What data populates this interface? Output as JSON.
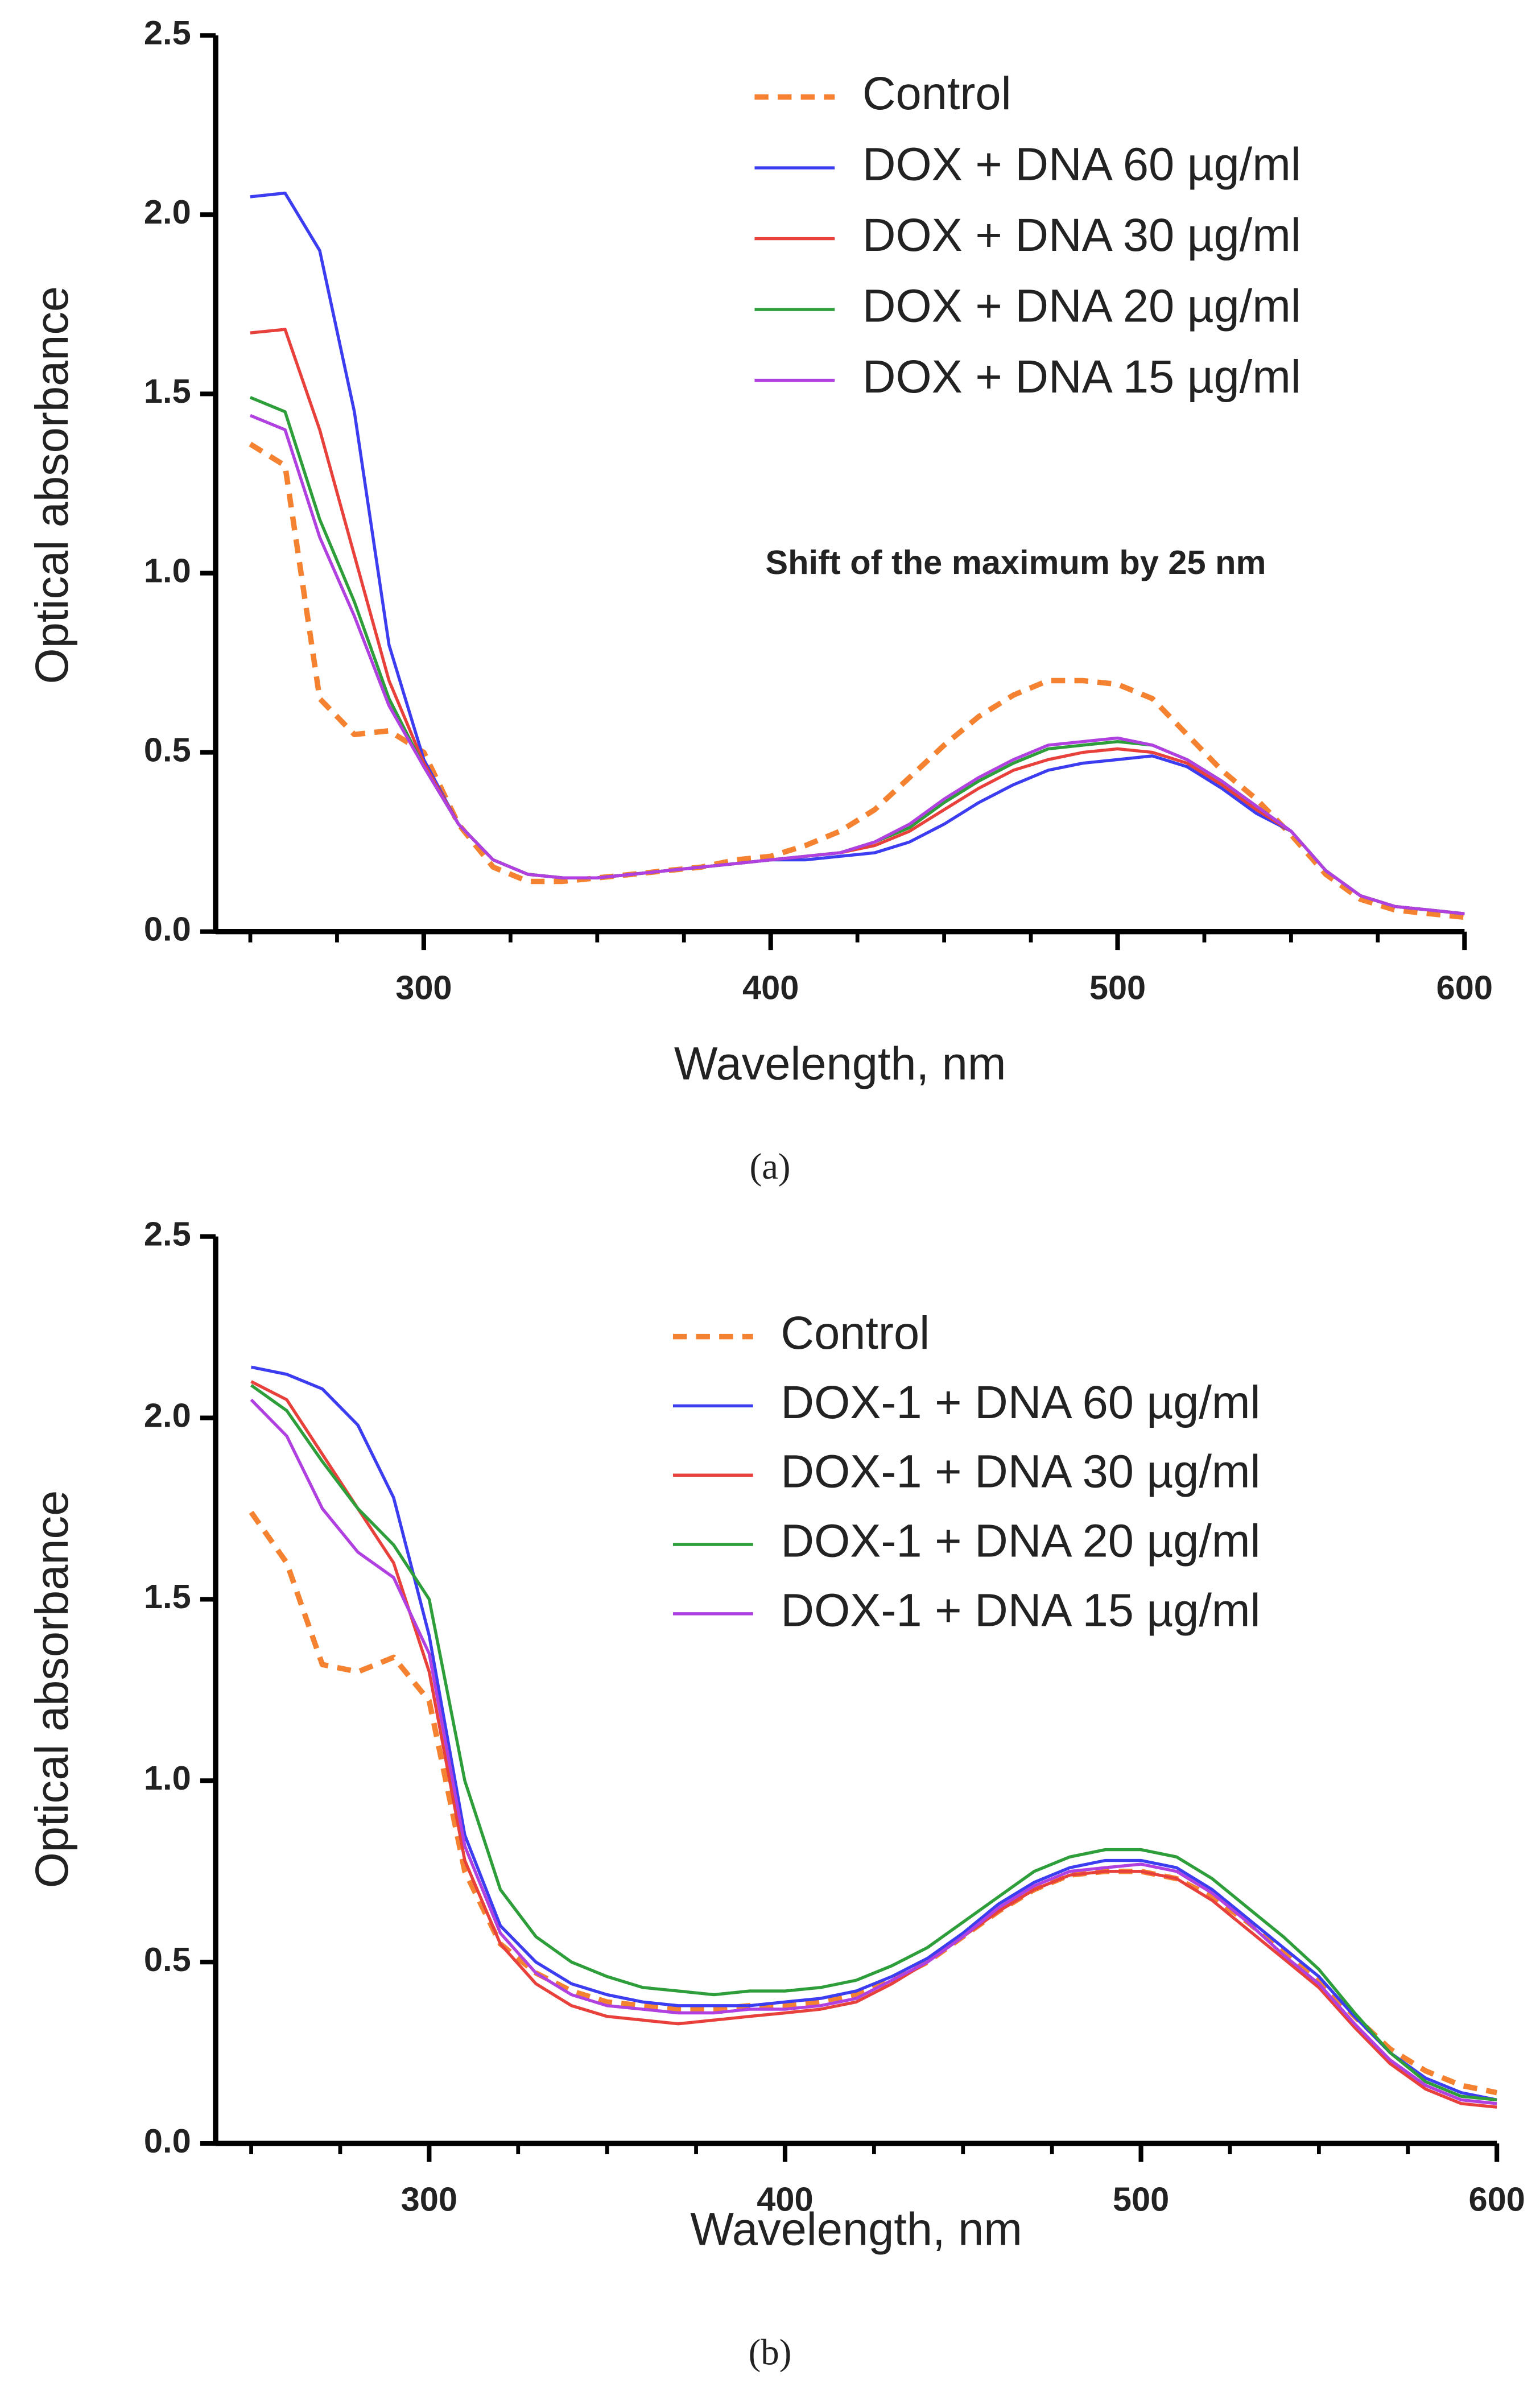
{
  "chart_data": [
    {
      "type": "line",
      "caption": "(a)",
      "xlabel": "Wavelength, nm",
      "ylabel": "Optical absorbance",
      "annotation": "Shift of the maximum by 25 nm",
      "xlim": [
        240,
        600
      ],
      "ylim": [
        0,
        2.5
      ],
      "xticks": [
        300,
        400,
        500,
        600
      ],
      "xticks_minor": [
        250,
        275,
        325,
        350,
        375,
        425,
        450,
        475,
        525,
        550,
        575
      ],
      "yticks": [
        {
          "value": 0,
          "label": "0.0"
        },
        0.5,
        {
          "value": 1,
          "label": "1.0"
        },
        1.5,
        {
          "value": 2,
          "label": "2.0"
        },
        2.5
      ],
      "x": [
        250,
        260,
        270,
        280,
        290,
        300,
        310,
        320,
        330,
        340,
        350,
        360,
        370,
        380,
        390,
        400,
        410,
        420,
        430,
        440,
        450,
        460,
        470,
        480,
        490,
        500,
        510,
        520,
        530,
        540,
        550,
        560,
        570,
        580,
        590,
        600
      ],
      "series": [
        {
          "name": "Control",
          "color": "#f58231",
          "dashed": true,
          "values": [
            1.36,
            1.3,
            0.65,
            0.55,
            0.56,
            0.5,
            0.3,
            0.18,
            0.14,
            0.14,
            0.15,
            0.16,
            0.17,
            0.18,
            0.2,
            0.21,
            0.24,
            0.28,
            0.34,
            0.43,
            0.52,
            0.6,
            0.66,
            0.7,
            0.7,
            0.69,
            0.65,
            0.55,
            0.45,
            0.37,
            0.27,
            0.16,
            0.09,
            0.06,
            0.05,
            0.04
          ]
        },
        {
          "name": "DOX + DNA 60 µg/ml",
          "color": "#3c3cf0",
          "values": [
            2.05,
            2.06,
            1.9,
            1.45,
            0.8,
            0.48,
            0.3,
            0.2,
            0.16,
            0.15,
            0.15,
            0.16,
            0.17,
            0.18,
            0.19,
            0.2,
            0.2,
            0.21,
            0.22,
            0.25,
            0.3,
            0.36,
            0.41,
            0.45,
            0.47,
            0.48,
            0.49,
            0.46,
            0.4,
            0.33,
            0.28,
            0.17,
            0.1,
            0.07,
            0.06,
            0.05
          ]
        },
        {
          "name": "DOX + DNA 30 µg/ml",
          "color": "#e8413c",
          "values": [
            1.67,
            1.68,
            1.4,
            1.05,
            0.7,
            0.47,
            0.3,
            0.2,
            0.16,
            0.15,
            0.15,
            0.16,
            0.17,
            0.18,
            0.19,
            0.2,
            0.21,
            0.22,
            0.24,
            0.28,
            0.34,
            0.4,
            0.45,
            0.48,
            0.5,
            0.51,
            0.5,
            0.47,
            0.41,
            0.34,
            0.28,
            0.17,
            0.1,
            0.07,
            0.06,
            0.05
          ]
        },
        {
          "name": "DOX + DNA 20 µg/ml",
          "color": "#2e9e3a",
          "values": [
            1.49,
            1.45,
            1.15,
            0.92,
            0.65,
            0.46,
            0.3,
            0.2,
            0.16,
            0.15,
            0.15,
            0.16,
            0.17,
            0.18,
            0.19,
            0.2,
            0.21,
            0.22,
            0.25,
            0.29,
            0.36,
            0.42,
            0.47,
            0.51,
            0.52,
            0.53,
            0.52,
            0.48,
            0.42,
            0.35,
            0.28,
            0.17,
            0.1,
            0.07,
            0.06,
            0.05
          ]
        },
        {
          "name": "DOX + DNA 15 µg/ml",
          "color": "#b040e0",
          "values": [
            1.44,
            1.4,
            1.1,
            0.88,
            0.63,
            0.46,
            0.3,
            0.2,
            0.16,
            0.15,
            0.15,
            0.16,
            0.17,
            0.18,
            0.19,
            0.2,
            0.21,
            0.22,
            0.25,
            0.3,
            0.37,
            0.43,
            0.48,
            0.52,
            0.53,
            0.54,
            0.52,
            0.48,
            0.42,
            0.35,
            0.28,
            0.17,
            0.1,
            0.07,
            0.06,
            0.05
          ]
        }
      ]
    },
    {
      "type": "line",
      "caption": "(b)",
      "xlabel": "Wavelength, nm",
      "ylabel": "Optical absorbance",
      "xlim": [
        240,
        600
      ],
      "ylim": [
        0,
        2.5
      ],
      "xticks": [
        300,
        400,
        500,
        600
      ],
      "xticks_minor": [
        250,
        275,
        325,
        350,
        375,
        425,
        450,
        475,
        525,
        550,
        575
      ],
      "yticks": [
        {
          "value": 0,
          "label": "0.0"
        },
        0.5,
        {
          "value": 1,
          "label": "1.0"
        },
        1.5,
        {
          "value": 2,
          "label": "2.0"
        },
        2.5
      ],
      "x": [
        250,
        260,
        270,
        280,
        290,
        300,
        310,
        320,
        330,
        340,
        350,
        360,
        370,
        380,
        390,
        400,
        410,
        420,
        430,
        440,
        450,
        460,
        470,
        480,
        490,
        500,
        510,
        520,
        530,
        540,
        550,
        560,
        570,
        580,
        590,
        600
      ],
      "series": [
        {
          "name": "Control",
          "color": "#f58231",
          "dashed": true,
          "values": [
            1.74,
            1.6,
            1.32,
            1.3,
            1.34,
            1.22,
            0.75,
            0.55,
            0.47,
            0.42,
            0.39,
            0.38,
            0.37,
            0.37,
            0.38,
            0.38,
            0.39,
            0.41,
            0.45,
            0.5,
            0.57,
            0.64,
            0.7,
            0.74,
            0.75,
            0.75,
            0.73,
            0.68,
            0.61,
            0.53,
            0.45,
            0.35,
            0.26,
            0.2,
            0.16,
            0.14
          ]
        },
        {
          "name": "DOX-1 + DNA 60 µg/ml",
          "color": "#3c3cf0",
          "values": [
            2.14,
            2.12,
            2.08,
            1.98,
            1.78,
            1.4,
            0.85,
            0.6,
            0.5,
            0.44,
            0.41,
            0.39,
            0.38,
            0.38,
            0.38,
            0.39,
            0.4,
            0.42,
            0.46,
            0.51,
            0.58,
            0.66,
            0.72,
            0.76,
            0.78,
            0.78,
            0.76,
            0.7,
            0.62,
            0.54,
            0.46,
            0.35,
            0.25,
            0.18,
            0.14,
            0.12
          ]
        },
        {
          "name": "DOX-1 + DNA 30 µg/ml",
          "color": "#e8413c",
          "values": [
            2.1,
            2.05,
            1.9,
            1.75,
            1.6,
            1.3,
            0.78,
            0.55,
            0.44,
            0.38,
            0.35,
            0.34,
            0.33,
            0.34,
            0.35,
            0.36,
            0.37,
            0.39,
            0.44,
            0.5,
            0.57,
            0.64,
            0.7,
            0.74,
            0.75,
            0.75,
            0.73,
            0.67,
            0.59,
            0.51,
            0.43,
            0.32,
            0.22,
            0.15,
            0.11,
            0.1
          ]
        },
        {
          "name": "DOX-1 + DNA 20 µg/ml",
          "color": "#2e9e3a",
          "values": [
            2.09,
            2.02,
            1.88,
            1.75,
            1.65,
            1.5,
            1.0,
            0.7,
            0.57,
            0.5,
            0.46,
            0.43,
            0.42,
            0.41,
            0.42,
            0.42,
            0.43,
            0.45,
            0.49,
            0.54,
            0.61,
            0.68,
            0.75,
            0.79,
            0.81,
            0.81,
            0.79,
            0.73,
            0.65,
            0.57,
            0.48,
            0.36,
            0.25,
            0.17,
            0.13,
            0.12
          ]
        },
        {
          "name": "DOX-1 + DNA 15 µg/ml",
          "color": "#b040e0",
          "values": [
            2.05,
            1.95,
            1.75,
            1.63,
            1.56,
            1.35,
            0.82,
            0.58,
            0.47,
            0.41,
            0.38,
            0.37,
            0.36,
            0.36,
            0.37,
            0.37,
            0.38,
            0.4,
            0.45,
            0.5,
            0.57,
            0.65,
            0.71,
            0.75,
            0.76,
            0.77,
            0.75,
            0.69,
            0.61,
            0.52,
            0.44,
            0.33,
            0.23,
            0.16,
            0.12,
            0.11
          ]
        }
      ]
    }
  ]
}
